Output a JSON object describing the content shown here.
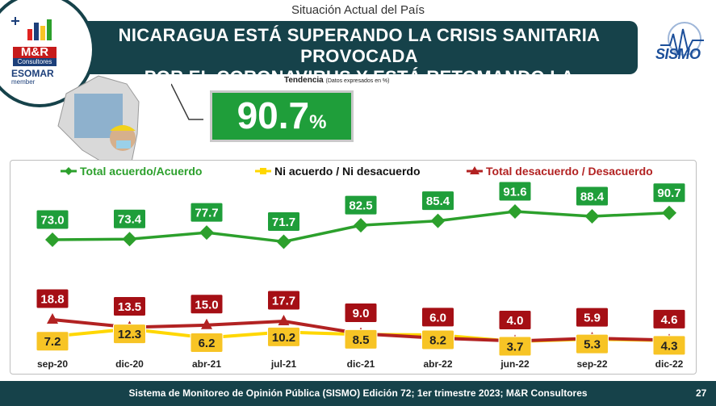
{
  "header": {
    "section_title": "Situación Actual del País",
    "headline_line1": "NICARAGUA ESTÁ SUPERANDO LA CRISIS SANITARIA PROVOCADA",
    "headline_line2": "POR EL CORONAVIRUS Y ESTÁ RETOMANDO LA NORMALIDAD"
  },
  "logo": {
    "brand": "M&R",
    "sub": "Consultores",
    "esomar": "ESOMAR",
    "member": "member"
  },
  "sismo_logo": "SISMO",
  "trend": {
    "label": "Tendencia",
    "note": "(Datos expresados en %)",
    "value": "90.7",
    "unit": "%"
  },
  "footer": {
    "source": "Sistema de Monitoreo de Opinión Pública (SISMO) Edición 72;  1er trimestre 2023; M&R Consultores",
    "page": "27"
  },
  "colors": {
    "dark_teal": "#16424a",
    "green": "#2ca02c",
    "label_green": "#1f9e3a",
    "yellow": "#ffd700",
    "label_yellow": "#f7c425",
    "dark_red": "#b22222",
    "label_red": "#a50f15"
  },
  "chart_data": {
    "type": "line",
    "categories": [
      "sep-20",
      "dic-20",
      "abr-21",
      "jul-21",
      "dic-21",
      "abr-22",
      "jun-22",
      "sep-22",
      "dic-22"
    ],
    "series": [
      {
        "name": "Total acuerdo/Acuerdo",
        "values": [
          73.0,
          73.4,
          77.7,
          71.7,
          82.5,
          85.4,
          91.6,
          88.4,
          90.7
        ],
        "color": "#2ca02c",
        "marker": "diamond"
      },
      {
        "name": "Ni acuerdo / Ni desacuerdo",
        "values": [
          7.2,
          12.3,
          6.2,
          10.2,
          8.5,
          8.2,
          3.7,
          5.3,
          4.3
        ],
        "color": "#ffd700",
        "marker": "square"
      },
      {
        "name": "Total desacuerdo / Desacuerdo",
        "values": [
          18.8,
          13.5,
          15.0,
          17.7,
          9.0,
          6.0,
          4.0,
          5.9,
          4.6
        ],
        "color": "#b22222",
        "marker": "triangle"
      }
    ],
    "legend_position": "top",
    "grid": false
  }
}
